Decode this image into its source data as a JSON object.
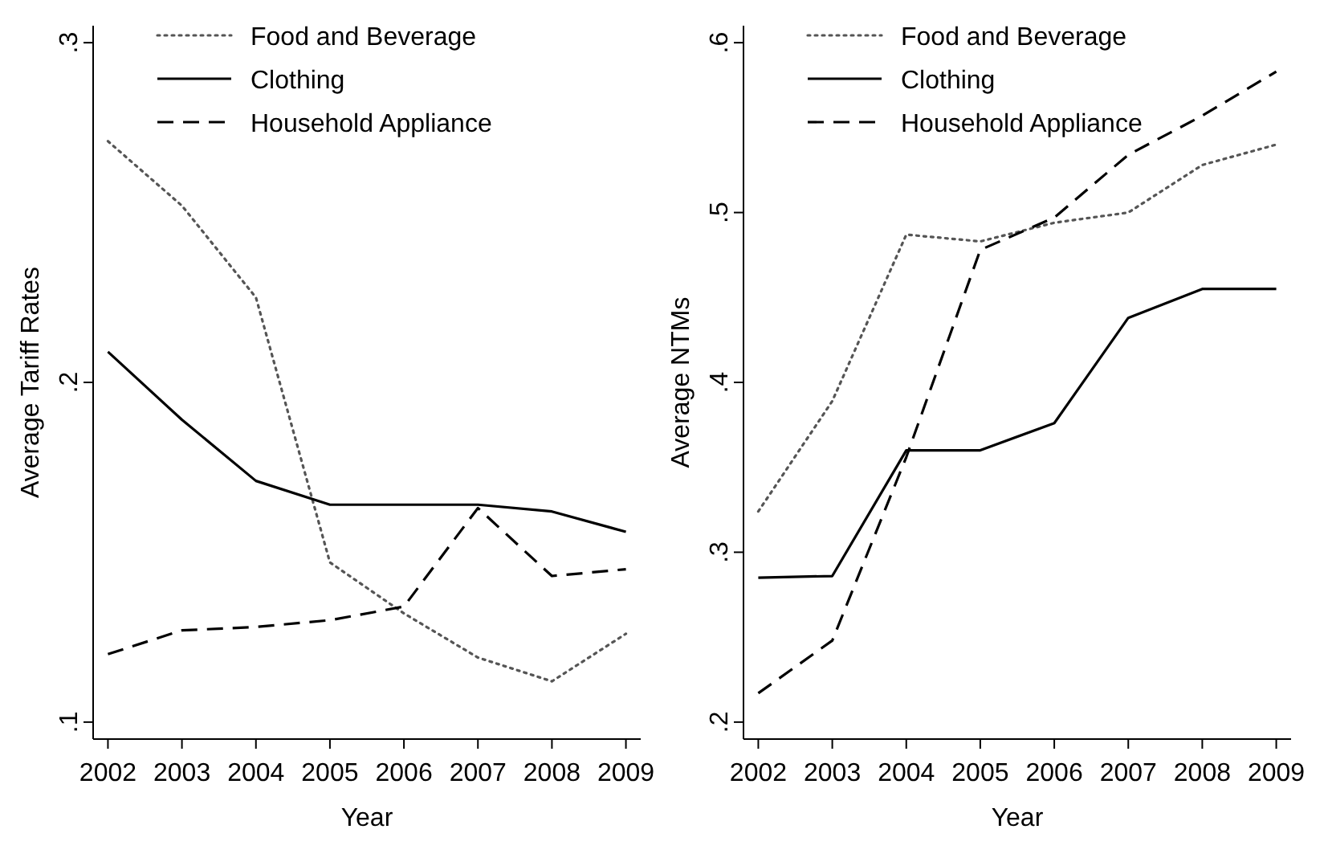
{
  "chart_data": [
    {
      "type": "line",
      "xlabel": "Year",
      "ylabel": "Average Tariff Rates",
      "x": [
        2002,
        2003,
        2004,
        2005,
        2006,
        2007,
        2008,
        2009
      ],
      "xlim": [
        2001.8,
        2009.2
      ],
      "xticks": [
        2002,
        2003,
        2004,
        2005,
        2006,
        2007,
        2008,
        2009
      ],
      "ylim": [
        0.095,
        0.305
      ],
      "yticks": [
        {
          "value": 0.1,
          "label": ".1"
        },
        {
          "value": 0.2,
          "label": ".2"
        },
        {
          "value": 0.3,
          "label": ".3"
        }
      ],
      "grid": false,
      "legend": "top",
      "series": [
        {
          "name": "Food and Beverage",
          "color": "#555555",
          "line_style": "dotted",
          "values": [
            0.271,
            0.252,
            0.225,
            0.147,
            0.132,
            0.119,
            0.112,
            0.126
          ]
        },
        {
          "name": "Clothing",
          "color": "#000000",
          "line_style": "solid",
          "values": [
            0.209,
            0.189,
            0.171,
            0.164,
            0.164,
            0.164,
            0.162,
            0.156
          ]
        },
        {
          "name": "Household Appliance",
          "color": "#000000",
          "line_style": "dashed",
          "values": [
            0.12,
            0.127,
            0.128,
            0.13,
            0.134,
            0.163,
            0.143,
            0.145
          ]
        }
      ]
    },
    {
      "type": "line",
      "xlabel": "Year",
      "ylabel": "Average NTMs",
      "x": [
        2002,
        2003,
        2004,
        2005,
        2006,
        2007,
        2008,
        2009
      ],
      "xlim": [
        2001.8,
        2009.2
      ],
      "xticks": [
        2002,
        2003,
        2004,
        2005,
        2006,
        2007,
        2008,
        2009
      ],
      "ylim": [
        0.19,
        0.61
      ],
      "yticks": [
        {
          "value": 0.2,
          "label": ".2"
        },
        {
          "value": 0.3,
          "label": ".3"
        },
        {
          "value": 0.4,
          "label": ".4"
        },
        {
          "value": 0.5,
          "label": ".5"
        },
        {
          "value": 0.6,
          "label": ".6"
        }
      ],
      "grid": false,
      "legend": "top",
      "series": [
        {
          "name": "Food and Beverage",
          "color": "#555555",
          "line_style": "dotted",
          "values": [
            0.324,
            0.389,
            0.487,
            0.483,
            0.494,
            0.5,
            0.528,
            0.54
          ]
        },
        {
          "name": "Clothing",
          "color": "#000000",
          "line_style": "solid",
          "values": [
            0.285,
            0.286,
            0.36,
            0.36,
            0.376,
            0.438,
            0.455,
            0.455
          ]
        },
        {
          "name": "Household Appliance",
          "color": "#000000",
          "line_style": "dashed",
          "values": [
            0.217,
            0.248,
            0.356,
            0.478,
            0.497,
            0.534,
            0.557,
            0.583
          ]
        }
      ]
    }
  ]
}
